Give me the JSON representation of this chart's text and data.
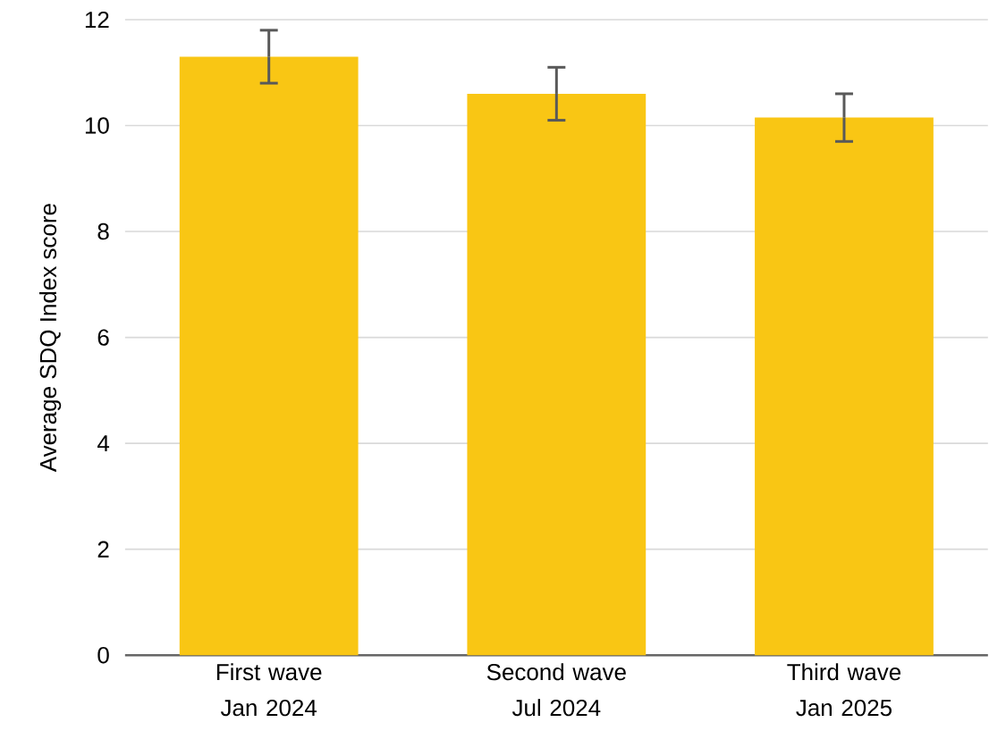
{
  "chart_data": {
    "type": "bar",
    "ylabel": "Average SDQ Index score",
    "categories": [
      "First wave Jan 2024",
      "Second wave Jul 2024",
      "Third wave Jan 2025"
    ],
    "values": [
      11.3,
      10.6,
      10.15
    ],
    "errors": [
      0.5,
      0.5,
      0.45
    ],
    "color": "#f9c614",
    "ylim": [
      0,
      12
    ],
    "yticks": [
      0,
      2,
      4,
      6,
      8,
      10,
      12
    ],
    "grid": "y"
  }
}
